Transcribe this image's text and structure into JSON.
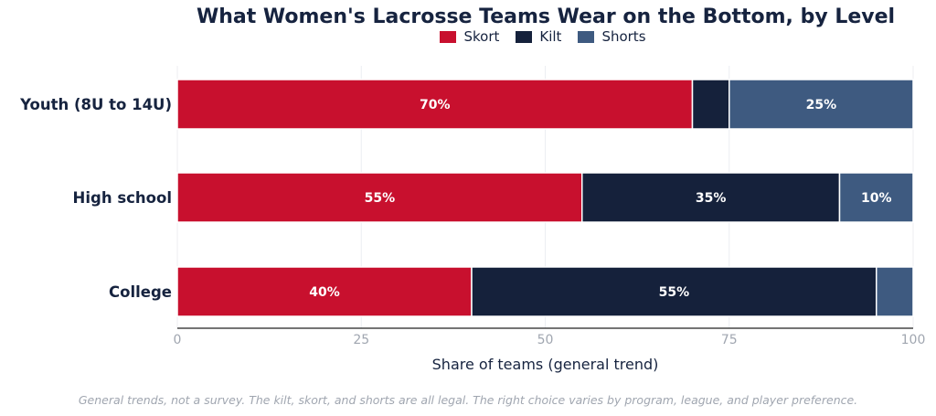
{
  "chart_data": {
    "type": "bar",
    "orientation": "horizontal",
    "stacked": true,
    "title": "What Women's Lacrosse Teams Wear on the Bottom, by Level",
    "xlabel": "Share of teams (general trend)",
    "ylabel": "",
    "xlim": [
      0,
      100
    ],
    "xticks": [
      "0",
      "25",
      "50",
      "75",
      "100"
    ],
    "categories": [
      "Youth (8U to 14U)",
      "High school",
      "College"
    ],
    "series": [
      {
        "name": "Skort",
        "color": "#c8102e",
        "values": [
          70,
          55,
          40
        ],
        "labels": [
          "70%",
          "55%",
          "40%"
        ]
      },
      {
        "name": "Kilt",
        "color": "#15213b",
        "values": [
          5,
          35,
          55
        ],
        "labels": [
          "",
          "35%",
          "55%"
        ]
      },
      {
        "name": "Shorts",
        "color": "#3e5a80",
        "values": [
          25,
          10,
          5
        ],
        "labels": [
          "25%",
          "10%",
          ""
        ]
      }
    ],
    "grid": "vertical",
    "legend": "top-center"
  },
  "footnote": "General trends, not a survey. The kilt, skort, and shorts are all legal. The right choice varies by program, league, and player preference."
}
